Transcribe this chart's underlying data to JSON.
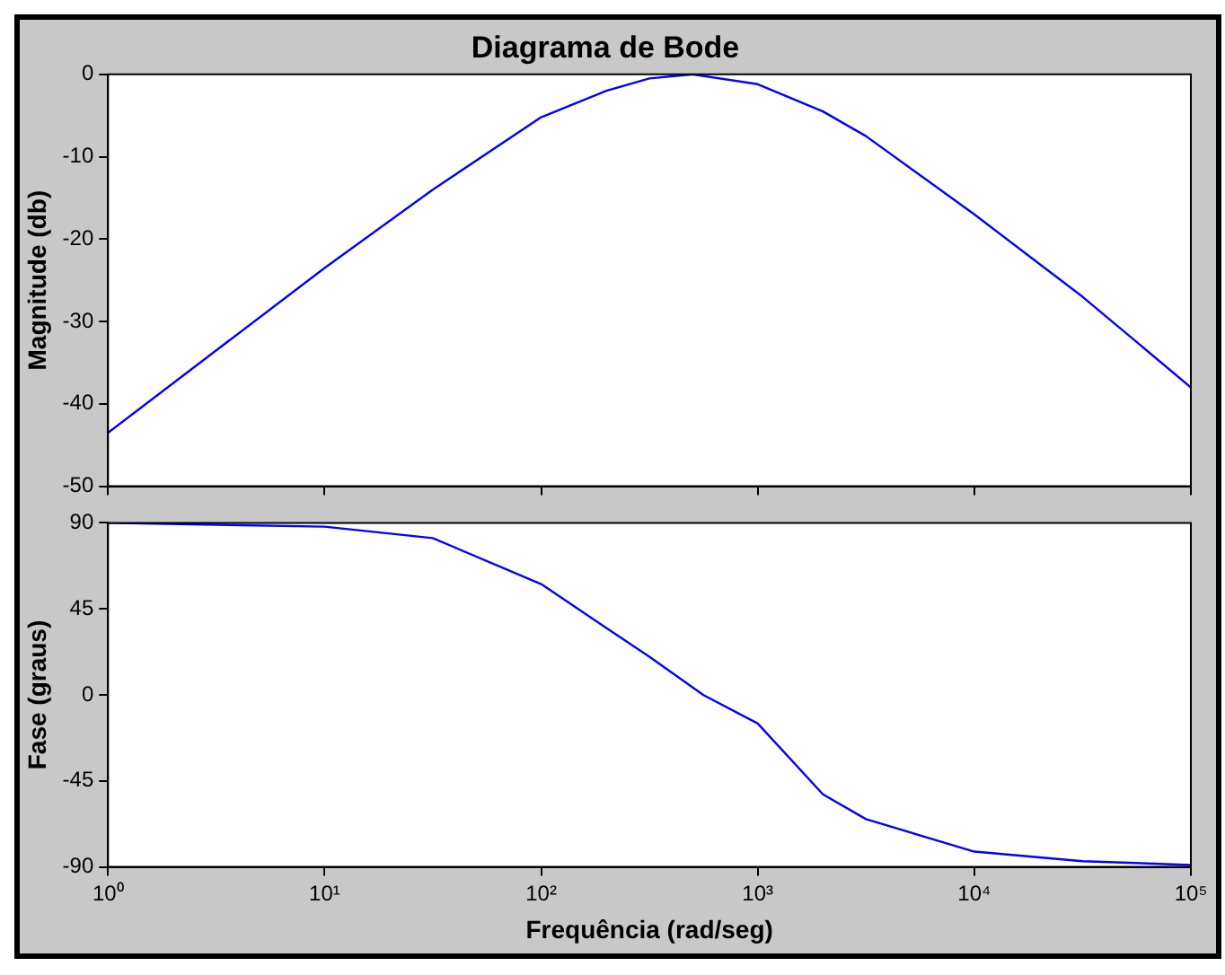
{
  "chart_data": [
    {
      "type": "line",
      "title": "Diagrama de Bode",
      "ylabel": "Magnitude (db)",
      "log": "x",
      "tick_labels": "y",
      "grid": false,
      "marker": "none",
      "line_style": "solid",
      "legend": false,
      "xlim": [
        1,
        100000
      ],
      "xticks": [
        {
          "value": 1,
          "label": null
        },
        {
          "value": 10,
          "label": null
        },
        {
          "value": 100,
          "label": null
        },
        {
          "value": 1000,
          "label": null
        },
        {
          "value": 10000,
          "label": null
        },
        {
          "value": 100000,
          "label": null
        }
      ],
      "ylim": [
        -50,
        0
      ],
      "yticks": [
        -50,
        -40,
        -30,
        -20,
        -10,
        0
      ],
      "series": [
        {
          "color": "#0000ff",
          "x": [
            1,
            3.16,
            10,
            31.6,
            100,
            200,
            316,
            500,
            1000,
            2000,
            3160,
            10000,
            31600,
            100000
          ],
          "values": [
            -43.5,
            -33.5,
            -23.5,
            -14,
            -5.2,
            -2,
            -0.5,
            0,
            -1.2,
            -4.5,
            -7.5,
            -17,
            -27,
            -38
          ]
        }
      ]
    },
    {
      "type": "line",
      "xlabel": "Frequência (rad/seg)",
      "ylabel": "Fase (graus)",
      "log": "x",
      "grid": false,
      "marker": "none",
      "line_style": "solid",
      "legend": false,
      "xlim": [
        1,
        100000
      ],
      "xticks": [
        {
          "value": 1,
          "label": "10⁰"
        },
        {
          "value": 10,
          "label": "10¹"
        },
        {
          "value": 100,
          "label": "10²"
        },
        {
          "value": 1000,
          "label": "10³"
        },
        {
          "value": 10000,
          "label": "10⁴"
        },
        {
          "value": 100000,
          "label": "10⁵"
        }
      ],
      "ylim": [
        -90,
        90
      ],
      "yticks": [
        -90,
        -45,
        0,
        45,
        90
      ],
      "series": [
        {
          "color": "#0000ff",
          "x": [
            1,
            3.16,
            10,
            31.6,
            100,
            200,
            316,
            560,
            1000,
            2000,
            3160,
            10000,
            31600,
            100000
          ],
          "values": [
            90,
            89,
            88,
            82,
            58,
            35,
            20,
            0,
            -15,
            -52,
            -65,
            -82,
            -87,
            -89
          ]
        }
      ]
    }
  ]
}
